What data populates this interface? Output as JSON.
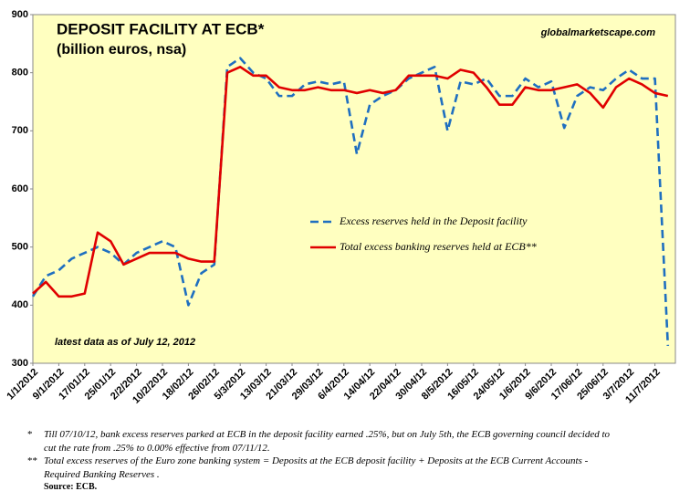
{
  "chart_data": {
    "type": "line",
    "title": "DEPOSIT FACILITY AT ECB*",
    "subtitle": "(billion euros, nsa)",
    "source_site": "globalmarketscape.com",
    "annotation": "latest data as of  July 12, 2012",
    "categories": [
      "1/1/2012",
      null,
      "9/1/2012",
      null,
      "17/01/12",
      null,
      "25/01/12",
      null,
      "2/2/2012",
      null,
      "10/2/2012",
      null,
      "18/02/12",
      null,
      "26/02/12",
      null,
      "5/3/2012",
      null,
      "13/03/12",
      null,
      "21/03/12",
      null,
      "29/03/12",
      null,
      "6/4/2012",
      null,
      "14/04/12",
      null,
      "22/04/12",
      null,
      "30/04/12",
      null,
      "8/5/2012",
      null,
      "16/05/12",
      null,
      "24/05/12",
      null,
      "1/6/2012",
      null,
      "9/6/2012",
      null,
      "17/06/12",
      null,
      "25/06/12",
      null,
      "3/7/2012",
      null,
      "11/7/2012",
      null
    ],
    "series": [
      {
        "name": "Excess reserves held in the Deposit facility",
        "color": "#1f6fc0",
        "dashed": true,
        "values": [
          415,
          450,
          460,
          480,
          490,
          500,
          490,
          470,
          490,
          500,
          510,
          500,
          400,
          455,
          470,
          810,
          825,
          800,
          790,
          760,
          760,
          780,
          785,
          780,
          785,
          660,
          745,
          760,
          770,
          790,
          800,
          810,
          700,
          785,
          780,
          790,
          760,
          760,
          790,
          775,
          785,
          705,
          760,
          775,
          770,
          790,
          805,
          790,
          790,
          330
        ]
      },
      {
        "name": "Total excess banking reserves held at ECB**",
        "color": "#e00000",
        "dashed": false,
        "values": [
          420,
          440,
          415,
          415,
          420,
          525,
          510,
          470,
          480,
          490,
          490,
          490,
          480,
          475,
          475,
          800,
          810,
          795,
          795,
          775,
          770,
          770,
          775,
          770,
          770,
          765,
          770,
          765,
          770,
          795,
          795,
          795,
          790,
          805,
          800,
          775,
          745,
          745,
          775,
          770,
          770,
          775,
          780,
          765,
          740,
          775,
          790,
          780,
          765,
          760
        ]
      }
    ],
    "ylim": [
      300,
      900
    ],
    "yticks": [
      300,
      400,
      500,
      600,
      700,
      800,
      900
    ],
    "grid": false,
    "legend_position": "center-right",
    "notes": [
      {
        "marker": "*",
        "lines": [
          "Till 07/10/12, bank excess reserves parked at ECB in the deposit facility earned .25%, but on July 5th, the ECB governing council decided to",
          "cut the rate from .25% to 0.00% effective from 07/11/12."
        ]
      },
      {
        "marker": "**",
        "lines": [
          "Total excess reserves of the Euro zone banking system = Deposits at the  ECB deposit facility +  Deposits at the ECB Current Accounts -",
          "Required Banking Reserves ."
        ]
      }
    ],
    "source": "Source: ECB."
  }
}
